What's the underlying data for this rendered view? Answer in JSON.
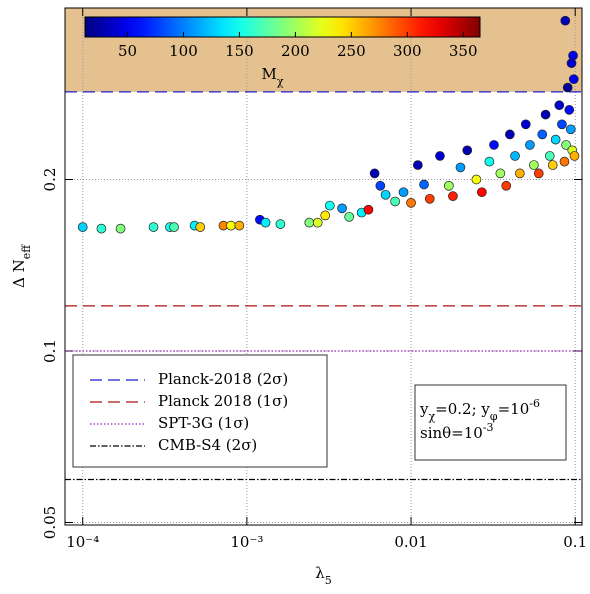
{
  "chart_data": {
    "type": "scatter",
    "x_label": [
      {
        "text": "λ"
      },
      {
        "text": "5",
        "shift": "sub"
      }
    ],
    "y_label": [
      {
        "text": "Δ N"
      },
      {
        "text": "eff",
        "shift": "sub"
      }
    ],
    "xlog": true,
    "ylog": true,
    "grid": true,
    "xlim": [
      7.8e-05,
      0.11
    ],
    "ylim": [
      0.0495,
      0.4
    ],
    "xticks": [
      {
        "value": 0.0001,
        "label": "10⁻⁴"
      },
      {
        "value": 0.001,
        "label": "10⁻³"
      },
      0.01,
      0.1
    ],
    "yticks": [
      0.05,
      0.1,
      0.2
    ],
    "colormap": "jet",
    "colorbar": {
      "label": [
        {
          "text": "M"
        },
        {
          "text": "χ",
          "shift": "sub"
        }
      ],
      "lim": [
        12,
        365
      ],
      "ticks": [
        50,
        100,
        150,
        200,
        250,
        300,
        350
      ]
    },
    "hlines": [
      {
        "name": "Planck-2018 (2σ)",
        "value": 0.285,
        "color": "#1f1fcf",
        "dash": "dashed",
        "shade_above": true,
        "shade_color": "#e5c18f"
      },
      {
        "name": "Planck 2018 (1σ)",
        "value": 0.12,
        "color": "#b01010",
        "dash": "dashed"
      },
      {
        "name": "SPT-3G (1σ)",
        "value": 0.1,
        "color": "#a020c0",
        "dash": "dotted"
      },
      {
        "name": "CMB-S4 (2σ)",
        "value": 0.0595,
        "color": "#000000",
        "dash": "dashdot"
      }
    ],
    "annotation": [
      [
        {
          "text": "y"
        },
        {
          "text": "χ",
          "shift": "sub"
        },
        {
          "text": "=0.2; y"
        },
        {
          "text": "φ",
          "shift": "sub"
        },
        {
          "text": "=10"
        },
        {
          "text": "-6",
          "shift": "sup"
        }
      ],
      [
        {
          "text": "sinθ=10"
        },
        {
          "text": "-3",
          "shift": "sup"
        }
      ]
    ],
    "series": [
      {
        "x": [
          0.0001,
          0.00013,
          0.00017,
          0.00027,
          0.00034,
          0.00036,
          0.00048,
          0.00052,
          0.00072,
          0.0008,
          0.0009,
          0.0012,
          0.0013,
          0.0016,
          0.0024,
          0.0027,
          0.003,
          0.0032,
          0.0038,
          0.0042,
          0.005,
          0.0055,
          0.006,
          0.0065,
          0.007,
          0.008,
          0.009,
          0.01,
          0.011,
          0.012,
          0.013,
          0.015,
          0.017,
          0.018,
          0.02,
          0.022,
          0.025,
          0.027,
          0.03,
          0.032,
          0.035,
          0.038,
          0.04,
          0.043,
          0.046,
          0.05,
          0.053,
          0.056,
          0.06,
          0.063,
          0.066,
          0.07,
          0.073,
          0.076,
          0.08,
          0.083,
          0.086,
          0.088,
          0.09,
          0.092,
          0.094,
          0.096,
          0.098,
          0.087,
          0.097,
          0.095,
          0.099
        ],
        "values": [
          0.165,
          0.164,
          0.164,
          0.165,
          0.165,
          0.165,
          0.166,
          0.165,
          0.166,
          0.166,
          0.166,
          0.17,
          0.168,
          0.167,
          0.168,
          0.168,
          0.173,
          0.18,
          0.178,
          0.172,
          0.175,
          0.177,
          0.205,
          0.195,
          0.188,
          0.183,
          0.19,
          0.182,
          0.212,
          0.196,
          0.185,
          0.22,
          0.195,
          0.187,
          0.21,
          0.225,
          0.2,
          0.19,
          0.215,
          0.23,
          0.205,
          0.195,
          0.24,
          0.22,
          0.205,
          0.25,
          0.23,
          0.212,
          0.205,
          0.24,
          0.26,
          0.22,
          0.212,
          0.235,
          0.27,
          0.25,
          0.215,
          0.23,
          0.29,
          0.265,
          0.245,
          0.225,
          0.3,
          0.38,
          0.33,
          0.32,
          0.22
        ],
        "color_values": [
          130,
          160,
          190,
          160,
          150,
          170,
          140,
          250,
          275,
          230,
          260,
          60,
          140,
          160,
          190,
          220,
          240,
          150,
          110,
          180,
          140,
          320,
          30,
          80,
          130,
          170,
          110,
          280,
          30,
          90,
          300,
          40,
          200,
          310,
          110,
          30,
          230,
          320,
          150,
          60,
          200,
          300,
          30,
          120,
          260,
          40,
          110,
          200,
          300,
          90,
          30,
          170,
          250,
          130,
          40,
          80,
          280,
          190,
          20,
          60,
          110,
          220,
          50,
          30,
          50,
          40,
          260
        ]
      }
    ]
  }
}
